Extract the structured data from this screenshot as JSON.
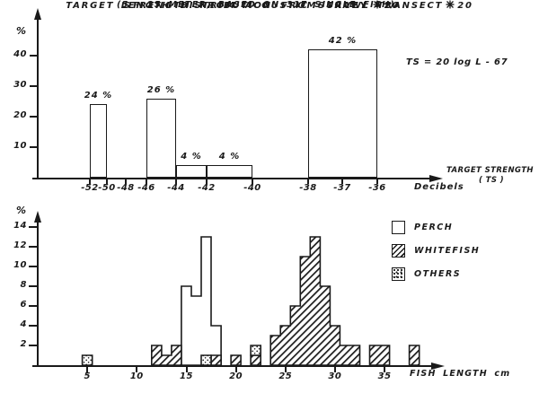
{
  "colors": {
    "ink": "#1a1a1a",
    "paper": "#ffffff"
  },
  "chart_data": [
    {
      "type": "bar",
      "title_prefix": "TARGET STRENGTH FROM ACOUSTIC SURVEY TRANSECT",
      "title_number": "20",
      "subtitle": "(5 - 25 METER, BASED ON 317 SINGLE FISH)",
      "annotation": "TS = 20 log L - 67",
      "ylabel": "%",
      "x_axis_label_line1": "TARGET STRENGTH",
      "x_axis_label_line2": "( TS )",
      "x_units_label": "Decibels",
      "y_ticks": [
        10,
        20,
        30,
        40
      ],
      "ylim": [
        0,
        50
      ],
      "x_ticks": [
        {
          "label": "-52",
          "px": 100
        },
        {
          "label": "-50",
          "px": 119
        },
        {
          "label": "-48",
          "px": 140
        },
        {
          "label": "-46",
          "px": 163
        },
        {
          "label": "-44",
          "px": 196
        },
        {
          "label": "-42",
          "px": 230
        },
        {
          "label": "-40",
          "px": 281
        },
        {
          "label": "-38",
          "px": 343
        },
        {
          "label": "-37",
          "px": 381
        },
        {
          "label": "-36",
          "px": 420
        }
      ],
      "bars": [
        {
          "from": "-52",
          "to": "-50",
          "value": 24,
          "label": "24 %"
        },
        {
          "from": "-46",
          "to": "-44",
          "value": 26,
          "label": "26 %"
        },
        {
          "from": "-44",
          "to": "-42",
          "value": 4,
          "label": "4 %"
        },
        {
          "from": "-42",
          "to": "-40",
          "value": 4,
          "label": "4 %"
        },
        {
          "from": "-38",
          "to": "-36",
          "value": 42,
          "label": "42 %"
        }
      ]
    },
    {
      "type": "histogram",
      "title_prefix": "LENGTH DISTRIBUTION FROM TRAWL",
      "title_number": "20",
      "ylabel": "%",
      "xlabel": "FISH LENGTH cm",
      "y_ticks": [
        2,
        4,
        6,
        8,
        10,
        12,
        14
      ],
      "ylim": [
        0,
        15
      ],
      "x_ticks": [
        5,
        10,
        15,
        20,
        25,
        30,
        35
      ],
      "bin_width_cm": 1,
      "series": [
        {
          "name": "PERCH",
          "pattern": "plain",
          "bins": [
            {
              "cm": 15,
              "pct": 8
            },
            {
              "cm": 16,
              "pct": 7
            },
            {
              "cm": 17,
              "pct": 13
            },
            {
              "cm": 18,
              "pct": 4
            }
          ]
        },
        {
          "name": "WHITEFISH",
          "pattern": "hatch",
          "bins": [
            {
              "cm": 12,
              "pct": 2
            },
            {
              "cm": 13,
              "pct": 1
            },
            {
              "cm": 14,
              "pct": 2
            },
            {
              "cm": 18,
              "pct": 1
            },
            {
              "cm": 20,
              "pct": 1
            },
            {
              "cm": 22,
              "pct": 1
            },
            {
              "cm": 24,
              "pct": 3
            },
            {
              "cm": 25,
              "pct": 4
            },
            {
              "cm": 26,
              "pct": 6
            },
            {
              "cm": 27,
              "pct": 11
            },
            {
              "cm": 28,
              "pct": 13
            },
            {
              "cm": 29,
              "pct": 8
            },
            {
              "cm": 30,
              "pct": 4
            },
            {
              "cm": 31,
              "pct": 2
            },
            {
              "cm": 32,
              "pct": 2
            },
            {
              "cm": 34,
              "pct": 2
            },
            {
              "cm": 35,
              "pct": 2
            },
            {
              "cm": 38,
              "pct": 2
            }
          ]
        },
        {
          "name": "OTHERS",
          "pattern": "stipple",
          "bins": [
            {
              "cm": 5,
              "pct": 1
            },
            {
              "cm": 17,
              "pct": 1
            },
            {
              "cm": 22,
              "pct": 1,
              "stack_base_pct": 1
            }
          ]
        }
      ],
      "legend": [
        {
          "label": "PERCH",
          "pattern": "plain"
        },
        {
          "label": "WHITEFISH",
          "pattern": "hatch"
        },
        {
          "label": "OTHERS",
          "pattern": "stipple"
        }
      ]
    }
  ]
}
